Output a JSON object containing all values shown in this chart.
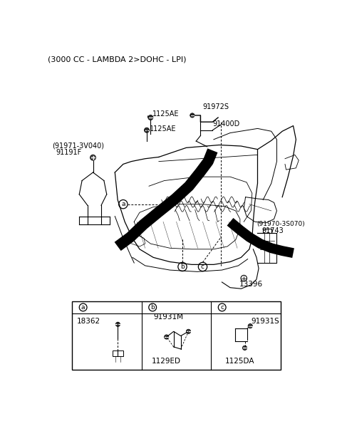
{
  "title": "(3000 CC - LAMBDA 2>DOHC - LPI)",
  "bg": "#ffffff",
  "fg": "#000000",
  "labels": {
    "tl1": "(91971-3V040)",
    "tl2": "91191F",
    "c1": "1125AE",
    "c2": "1125AE",
    "tr1": "91972S",
    "tr2": "91400D",
    "la": "a",
    "lb": "b",
    "lc": "c",
    "r1": "(91970-3S070)",
    "r2": "91743",
    "br": "13396",
    "ta": "18362",
    "tb1": "91931M",
    "tb2": "1129ED",
    "tc1": "91931S",
    "tc2": "1125DA"
  }
}
